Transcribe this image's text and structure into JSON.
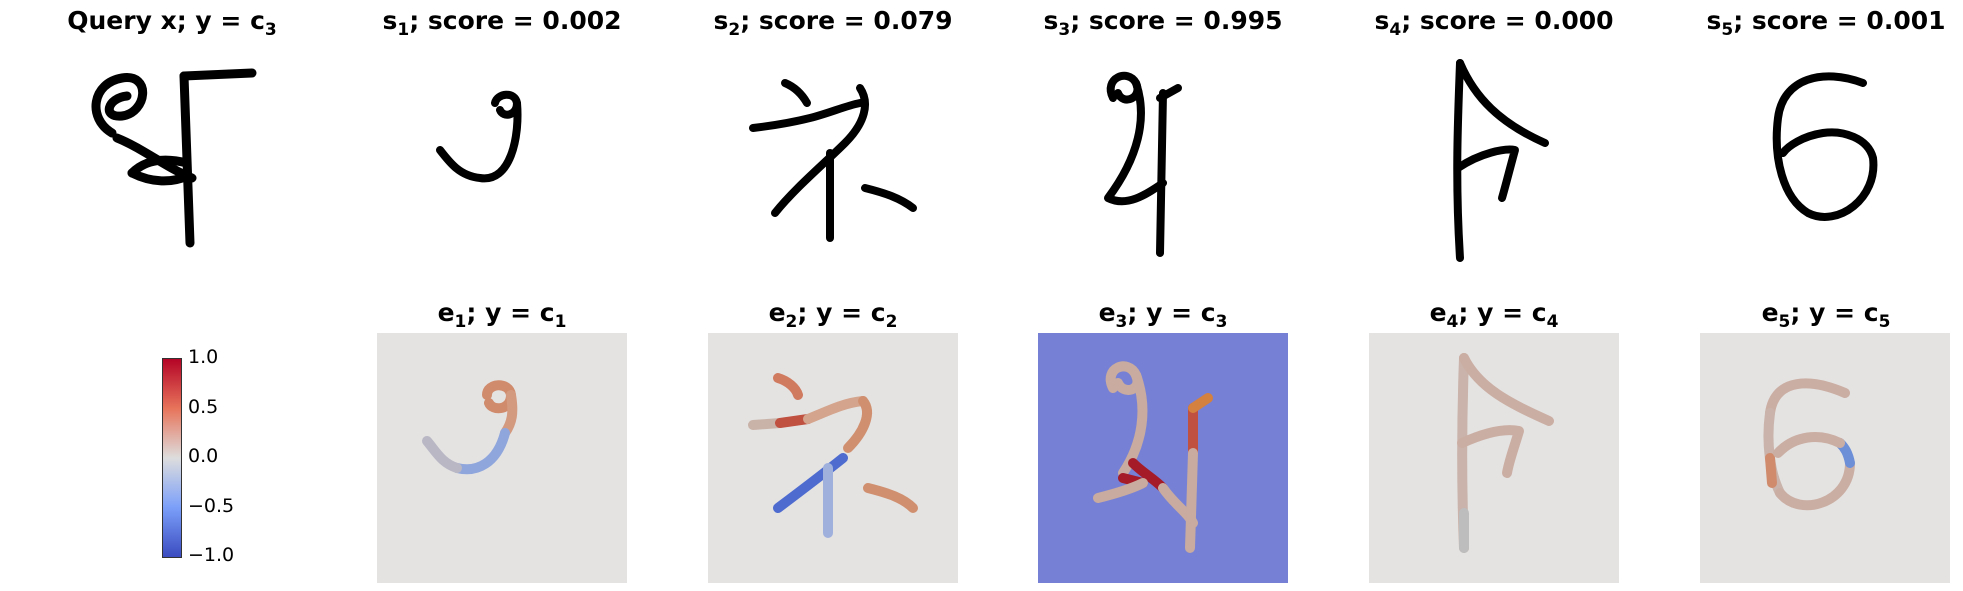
{
  "top_row": [
    {
      "label": "Query x; y = c",
      "sub": "3"
    },
    {
      "label": "s",
      "sub": "1",
      "rest": "; score = 0.002"
    },
    {
      "label": "s",
      "sub": "2",
      "rest": "; score = 0.079"
    },
    {
      "label": "s",
      "sub": "3",
      "rest": "; score = 0.995"
    },
    {
      "label": "s",
      "sub": "4",
      "rest": "; score = 0.000"
    },
    {
      "label": "s",
      "sub": "5",
      "rest": "; score = 0.001"
    }
  ],
  "bottom_row": [
    {
      "label": "e",
      "sub": "1",
      "rest": "; y = c",
      "sub2": "1"
    },
    {
      "label": "e",
      "sub": "2",
      "rest": "; y = c",
      "sub2": "2"
    },
    {
      "label": "e",
      "sub": "3",
      "rest": "; y = c",
      "sub2": "3"
    },
    {
      "label": "e",
      "sub": "4",
      "rest": "; y = c",
      "sub2": "4"
    },
    {
      "label": "e",
      "sub": "5",
      "rest": "; y = c",
      "sub2": "5"
    }
  ],
  "colorbar": {
    "ticks": [
      "1.0",
      "0.5",
      "0.0",
      "−0.5",
      "−1.0"
    ],
    "colors": {
      "high": "#b40426",
      "mid": "#dddddd",
      "low": "#3b4cc0"
    }
  },
  "colors": {
    "panel_neutral": "#e4e3e2",
    "panel_negative": "#7680d5",
    "stroke_positive": "#d08b6c",
    "stroke_negative": "#6d8fd8",
    "stroke_neutral": "#c9ab9f"
  }
}
